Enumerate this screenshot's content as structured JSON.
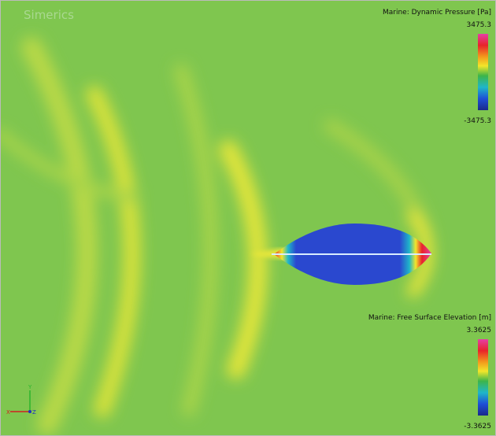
{
  "logo": "Simerics",
  "legends": [
    {
      "title": "Marine: Dynamic Pressure [Pa]",
      "max": "3475.3",
      "min": "-3475.3"
    },
    {
      "title": "Marine: Free Surface Elevation [m]",
      "max": "3.3625",
      "min": "-3.3625"
    }
  ],
  "axes": {
    "x": "X",
    "y": "Y",
    "z": "Z"
  }
}
